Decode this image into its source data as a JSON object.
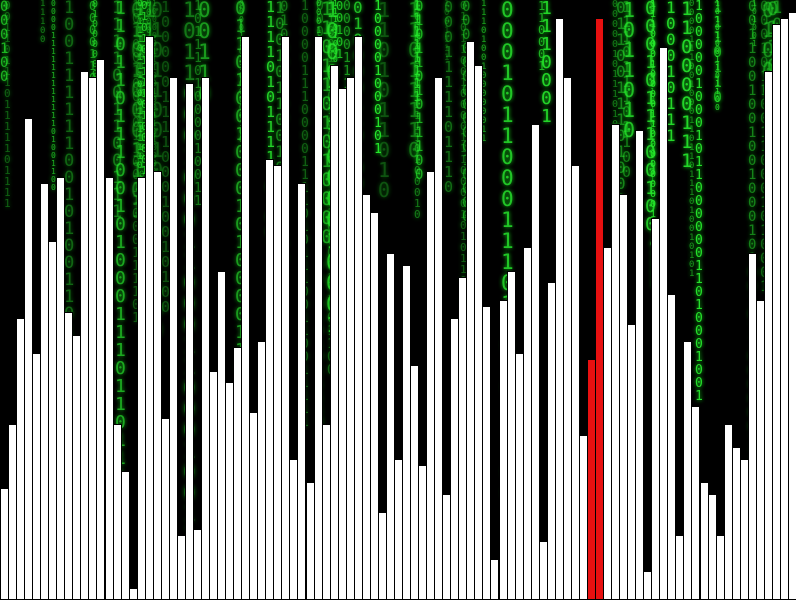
{
  "visualizer": {
    "bar_count": 99,
    "bar_color": "#ffffff",
    "bar_border_color": "#000000",
    "highlight_color": "#e81010",
    "highlight_indices": [
      73,
      74
    ],
    "background_color": "#000000",
    "rain_color": "#27e82d",
    "rain_glyphs": [
      "0",
      "1"
    ],
    "values": [
      0.19,
      0.3,
      0.48,
      0.82,
      0.42,
      0.71,
      0.61,
      0.72,
      0.49,
      0.45,
      0.9,
      0.89,
      0.92,
      0.72,
      0.3,
      0.22,
      0.02,
      0.72,
      0.96,
      0.73,
      0.31,
      0.89,
      0.11,
      0.88,
      0.12,
      0.89,
      0.39,
      0.56,
      0.37,
      0.43,
      0.96,
      0.32,
      0.44,
      0.75,
      0.74,
      0.96,
      0.24,
      0.71,
      0.2,
      0.96,
      0.3,
      0.91,
      0.87,
      0.89,
      0.96,
      0.69,
      0.66,
      0.15,
      0.59,
      0.24,
      0.57,
      0.4,
      0.23,
      0.73,
      0.89,
      0.18,
      0.48,
      0.55,
      0.95,
      0.91,
      0.5,
      0.07,
      0.51,
      0.56,
      0.42,
      0.6,
      0.81,
      0.1,
      0.54,
      0.99,
      0.89,
      0.74,
      0.28,
      0.41,
      0.99,
      0.6,
      0.81,
      0.69,
      0.47,
      0.8,
      0.05,
      0.65,
      0.94,
      0.52,
      0.11,
      0.44,
      0.33,
      0.2,
      0.18,
      0.11,
      0.3,
      0.26,
      0.24,
      0.59,
      0.51,
      0.9,
      0.98,
      0.99,
      1.0
    ]
  }
}
